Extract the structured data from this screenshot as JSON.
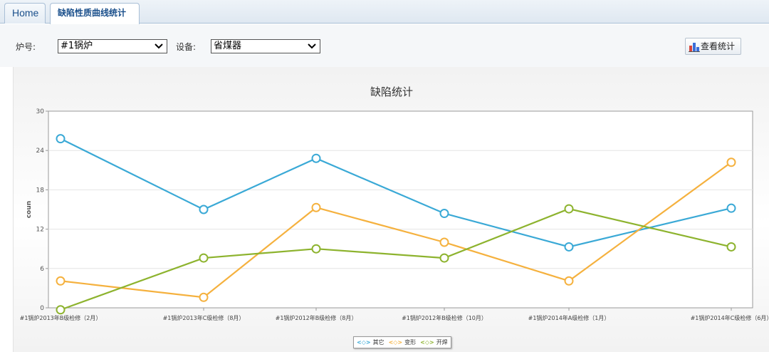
{
  "tabs": [
    {
      "label": "Home",
      "active": false
    },
    {
      "label": "缺陷性质曲线统计",
      "active": true,
      "closable": true
    }
  ],
  "filters": {
    "boiler_label": "炉号:",
    "boiler_value": "#1锅炉",
    "device_label": "设备:",
    "device_value": "省煤器"
  },
  "stats_button": {
    "label": "查看统计",
    "icon": "bar-chart-icon"
  },
  "colors": {
    "其它": "#3aa9d6",
    "变形": "#f5b13e",
    "开焊": "#8db32e"
  },
  "chart_data": {
    "type": "line",
    "title": "缺陷统计",
    "ylabel": "coun",
    "xlabel": "",
    "ylim": [
      0,
      30
    ],
    "yticks": [
      0,
      6,
      12,
      18,
      24,
      30
    ],
    "grid": true,
    "legend_position": "bottom-center",
    "categories": [
      "#1锅炉2013年B级检修（2月）",
      "#1锅炉2013年C级检修（8月）",
      "#1锅炉2012年B级检修（8月）",
      "#1锅炉2012年B级检修（10月）",
      "#1锅炉2014年A级检修（1月）",
      "#1锅炉2014年C级检修（6月）"
    ],
    "series": [
      {
        "name": "其它",
        "color": "#3aa9d6",
        "values": [
          25.8,
          15,
          22.8,
          14.4,
          9.3,
          15.2
        ]
      },
      {
        "name": "变形",
        "color": "#f5b13e",
        "values": [
          4.1,
          1.6,
          15.3,
          10,
          4.1,
          22.2
        ]
      },
      {
        "name": "开焊",
        "color": "#8db32e",
        "values": [
          -0.3,
          7.6,
          9,
          7.6,
          15.1,
          9.3
        ]
      }
    ]
  }
}
